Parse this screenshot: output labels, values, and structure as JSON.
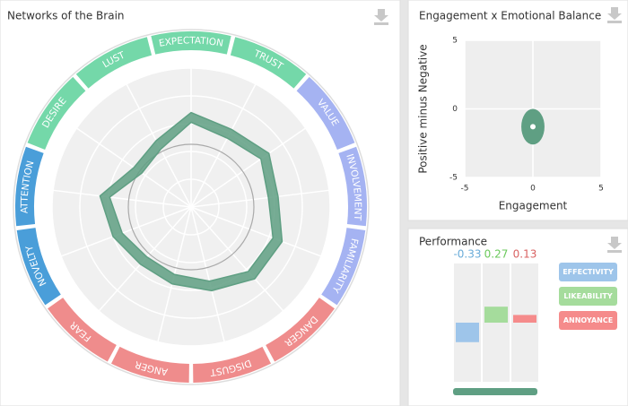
{
  "chart_data": [
    {
      "type": "radar",
      "title": "Networks of the Brain",
      "categories": [
        "EXPECTATION",
        "TRUST",
        "VALUE",
        "INVOLVEMENT",
        "FAMILIARITY",
        "DANGER",
        "DISGUST",
        "ANGER",
        "FEAR",
        "NOVELTY",
        "ATTENTION",
        "DESIRE",
        "LUST"
      ],
      "category_colors": [
        "#74d8a9",
        "#74d8a9",
        "#a5b3f2",
        "#a5b3f2",
        "#a5b3f2",
        "#ef8c8c",
        "#ef8c8c",
        "#ef8c8c",
        "#ef8c8c",
        "#4a9ed9",
        "#4a9ed9",
        "#74d8a9",
        "#74d8a9"
      ],
      "rlim": [
        0,
        100
      ],
      "series": [
        {
          "color": "#5f9f83",
          "values": [
            68,
            63,
            68,
            63,
            70,
            69,
            62,
            57,
            55,
            60,
            66,
            50,
            54
          ]
        },
        {
          "color": "#5f9f83",
          "values": [
            61,
            56,
            61,
            56,
            63,
            62,
            55,
            50,
            48,
            53,
            59,
            43,
            47
          ]
        }
      ]
    },
    {
      "type": "scatter",
      "title": "Engagement x Emotional Balance",
      "xlabel": "Engagement",
      "ylabel": "Positive minus Negative",
      "xlim": [
        -5,
        5
      ],
      "ylim": [
        -5,
        5
      ],
      "xticks": [
        -5,
        0,
        5
      ],
      "yticks": [
        -5,
        0,
        5
      ],
      "grid": true,
      "series": [
        {
          "color": "#5f9f83",
          "x": [
            0
          ],
          "values": [
            -1.3
          ],
          "x_err": [
            0.85
          ],
          "y_err": [
            1.3
          ]
        }
      ]
    },
    {
      "type": "bar",
      "title": "Performance",
      "categories": [
        "EFFECTIVITY",
        "LIKEABILITY",
        "ANNOYANCE"
      ],
      "values": [
        -0.33,
        0.27,
        0.13
      ],
      "colors": [
        "#9ec5ea",
        "#a5dc9c",
        "#f58b8b"
      ],
      "ylim": [
        -1,
        1
      ]
    }
  ]
}
